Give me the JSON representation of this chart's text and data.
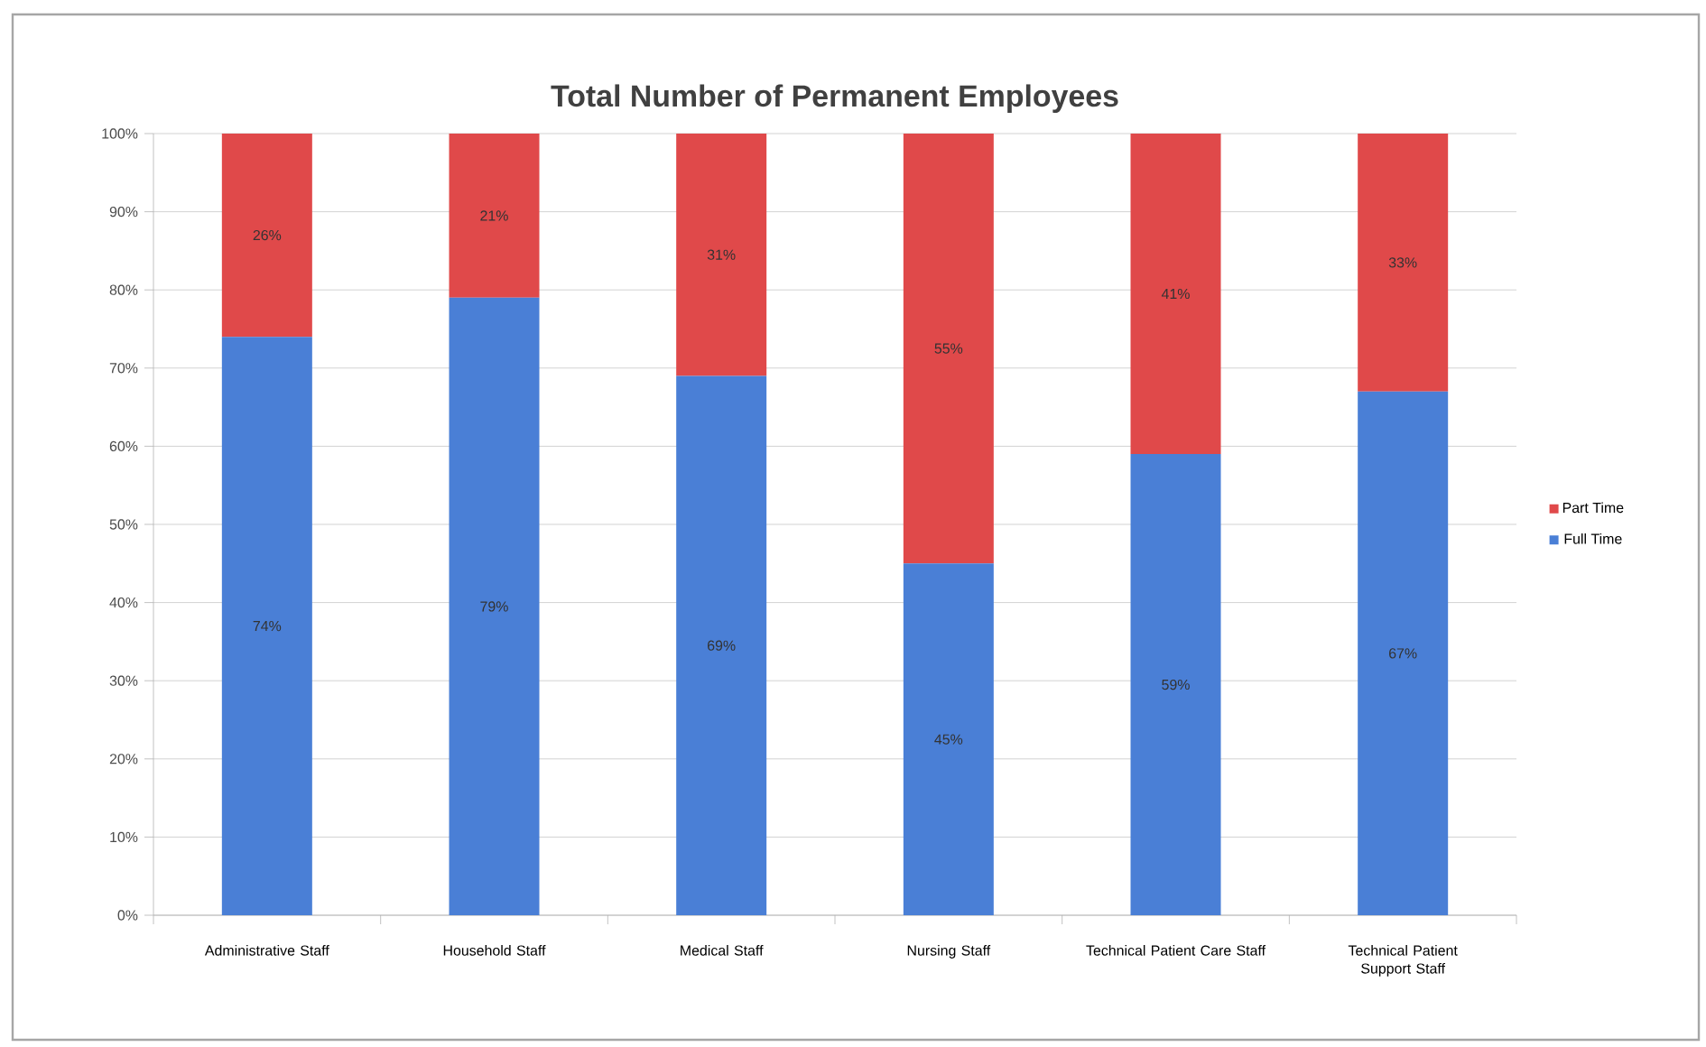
{
  "chart_data": {
    "type": "bar",
    "stacked": true,
    "title": "Total Number of Permanent Employees",
    "categories": [
      "Administrative Staff",
      "Household Staff",
      "Medical Staff",
      "Nursing Staff",
      "Technical Patient Care Staff",
      "Technical Patient Support Staff"
    ],
    "series": [
      {
        "name": "Full Time",
        "color": "#4a7fd6",
        "values": [
          74,
          79,
          69,
          45,
          59,
          67
        ],
        "value_labels": [
          "74%",
          "79%",
          "69%",
          "45%",
          "59%",
          "67%"
        ]
      },
      {
        "name": "Part Time",
        "color": "#e0494a",
        "values": [
          26,
          21,
          31,
          55,
          41,
          33
        ],
        "value_labels": [
          "26%",
          "21%",
          "31%",
          "55%",
          "41%",
          "33%"
        ]
      }
    ],
    "ylim": [
      0,
      100
    ],
    "yticks": [
      {
        "value": 0,
        "label": "0%"
      },
      {
        "value": 10,
        "label": "10%"
      },
      {
        "value": 20,
        "label": "20%"
      },
      {
        "value": 30,
        "label": "30%"
      },
      {
        "value": 40,
        "label": "40%"
      },
      {
        "value": 50,
        "label": "50%"
      },
      {
        "value": 60,
        "label": "60%"
      },
      {
        "value": 70,
        "label": "70%"
      },
      {
        "value": 80,
        "label": "80%"
      },
      {
        "value": 90,
        "label": "90%"
      },
      {
        "value": 100,
        "label": "100%"
      }
    ],
    "grid": "y",
    "legend": "right"
  }
}
